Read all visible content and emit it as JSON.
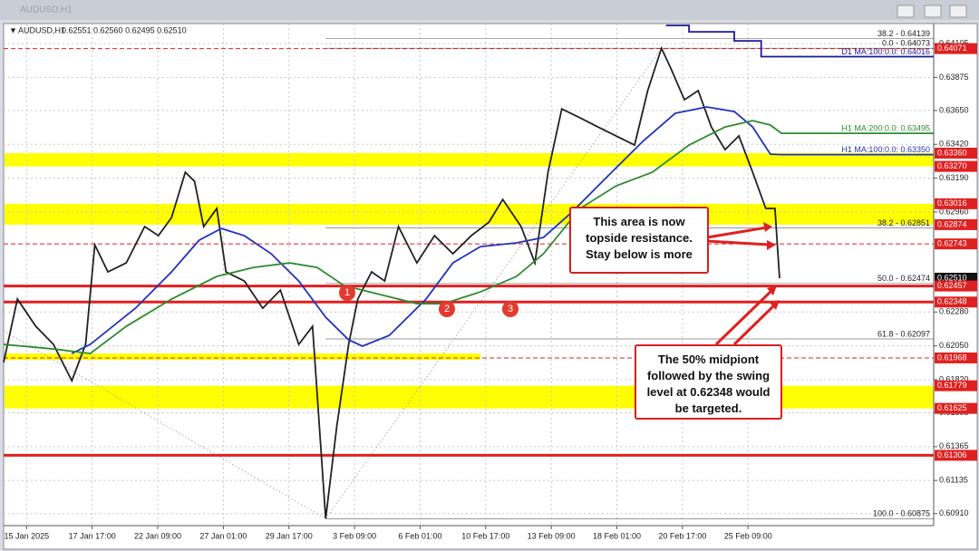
{
  "chart_data": {
    "type": "line",
    "title": "AUDUSD,H1",
    "subtitle": "0.62551 0.62560 0.62495 0.62510",
    "xlim": [
      -0.35,
      13.83
    ],
    "ylim": [
      0.60828,
      0.64241
    ],
    "grid": true,
    "xticks": [
      {
        "value": 0,
        "label": "15 Jan 2025"
      },
      {
        "value": 1,
        "label": "17 Jan 17:00"
      },
      {
        "value": 2,
        "label": "22 Jan 09:00"
      },
      {
        "value": 3,
        "label": "27 Jan 01:00"
      },
      {
        "value": 4,
        "label": "29 Jan 17:00"
      },
      {
        "value": 5,
        "label": "3 Feb 09:00"
      },
      {
        "value": 6,
        "label": "6 Feb 01:00"
      },
      {
        "value": 7,
        "label": "10 Feb 17:00"
      },
      {
        "value": 8,
        "label": "13 Feb 09:00"
      },
      {
        "value": 9,
        "label": "18 Feb 01:00"
      },
      {
        "value": 10,
        "label": "20 Feb 17:00"
      },
      {
        "value": 11,
        "label": "25 Feb 09:00"
      }
    ],
    "yticks": [
      0.64105,
      0.63875,
      {
        "value": 0.6365,
        "label": "0.63650"
      },
      {
        "value": 0.6342,
        "label": "0.63420"
      },
      {
        "value": 0.6319,
        "label": "0.63190"
      },
      {
        "value": 0.6296,
        "label": "0.62960"
      },
      {
        "value": 0.6228,
        "label": "0.62280"
      },
      {
        "value": 0.6205,
        "label": "0.62050"
      },
      {
        "value": 0.6182,
        "label": "0.61820"
      },
      0.61595,
      0.61365,
      0.61135,
      {
        "value": 0.6091,
        "label": "0.60910"
      }
    ],
    "series": [
      {
        "name": "AUDUSD,H1",
        "color": "#222222",
        "x": [
          -0.35,
          -0.14,
          0.14,
          0.41,
          0.69,
          0.9,
          1.04,
          1.24,
          1.52,
          1.8,
          2.01,
          2.21,
          2.42,
          2.56,
          2.7,
          2.9,
          3.04,
          3.32,
          3.6,
          3.87,
          4.15,
          4.36,
          4.56,
          4.73,
          4.91,
          5.05,
          5.26,
          5.46,
          5.67,
          5.95,
          6.22,
          6.5,
          6.78,
          7.05,
          7.26,
          7.54,
          7.75,
          7.95,
          8.16,
          8.44,
          8.71,
          8.99,
          9.27,
          9.47,
          9.68,
          9.82,
          10.03,
          10.24,
          10.44,
          10.65,
          10.86,
          11.07,
          11.27,
          11.41,
          11.48
        ],
        "values": [
          0.61937,
          0.62368,
          0.62183,
          0.6206,
          0.61813,
          0.6206,
          0.62737,
          0.62553,
          0.62614,
          0.62861,
          0.62799,
          0.62922,
          0.6323,
          0.63169,
          0.62861,
          0.62984,
          0.62553,
          0.62491,
          0.62306,
          0.62429,
          0.6206,
          0.62183,
          0.60875,
          0.61505,
          0.6206,
          0.62368,
          0.62553,
          0.62491,
          0.62861,
          0.62614,
          0.62799,
          0.62676,
          0.62799,
          0.62891,
          0.63045,
          0.62861,
          0.62614,
          0.6323,
          0.63661,
          0.636,
          0.63538,
          0.63477,
          0.63415,
          0.63785,
          0.64073,
          0.63939,
          0.63723,
          0.63785,
          0.63538,
          0.63384,
          0.63477,
          0.6323,
          0.62984,
          0.62984,
          0.6251
        ]
      },
      {
        "name": "H1 MA:100:0.0: 0.63350",
        "color": "#2233bb",
        "x": [
          0.69,
          0.97,
          1.66,
          2.21,
          2.63,
          2.97,
          3.32,
          3.73,
          4.15,
          4.56,
          4.91,
          5.12,
          5.53,
          6.09,
          6.5,
          6.92,
          7.47,
          7.88,
          8.3,
          8.85,
          9.41,
          9.89,
          10.37,
          10.79,
          11.07,
          11.34,
          11.51,
          13.83
        ],
        "values": [
          0.61998,
          0.6206,
          0.62306,
          0.62553,
          0.62768,
          0.62848,
          0.62799,
          0.62676,
          0.62491,
          0.62245,
          0.62091,
          0.62048,
          0.62121,
          0.62368,
          0.62614,
          0.62725,
          0.6275,
          0.62787,
          0.62953,
          0.63199,
          0.63446,
          0.63631,
          0.63674,
          0.63643,
          0.63538,
          0.63353,
          0.6335,
          0.6335
        ]
      },
      {
        "name": "H1 MA:200:0.0: 0.63495",
        "color": "#2e8b2e",
        "x": [
          -0.35,
          0.41,
          0.97,
          1.52,
          2.21,
          2.9,
          3.46,
          4.01,
          4.43,
          4.84,
          5.39,
          5.95,
          6.36,
          6.92,
          7.47,
          7.88,
          8.44,
          8.99,
          9.54,
          10.1,
          10.65,
          11.07,
          11.34,
          11.51,
          13.83
        ],
        "values": [
          0.6206,
          0.62029,
          0.61998,
          0.62183,
          0.62368,
          0.62522,
          0.62583,
          0.62614,
          0.62583,
          0.6246,
          0.62399,
          0.62337,
          0.62337,
          0.62417,
          0.62522,
          0.62676,
          0.62984,
          0.63138,
          0.6323,
          0.63415,
          0.63538,
          0.63581,
          0.63551,
          0.63495,
          0.63495
        ]
      },
      {
        "name": "D1 MA:100:0.0: 0.64016",
        "color": "#1a1a99",
        "x": [
          9.75,
          10.1,
          10.1,
          10.79,
          10.79,
          11.2,
          11.2,
          13.83
        ],
        "values": [
          0.64228,
          0.64228,
          0.64185,
          0.64185,
          0.64123,
          0.64123,
          0.64016,
          0.64016
        ]
      }
    ],
    "trendlines": [
      {
        "x": [
          -0.35,
          4.56
        ],
        "values": [
          0.62152,
          0.60875
        ]
      },
      {
        "x": [
          4.56,
          9.68
        ],
        "values": [
          0.60875,
          0.64073
        ]
      }
    ],
    "zones": [
      {
        "from": 0.6327,
        "to": 0.6336,
        "color": "#ffff00"
      },
      {
        "from": 0.62874,
        "to": 0.63016,
        "color": "#ffff00"
      },
      {
        "from": 0.61955,
        "to": 0.61998,
        "color": "#ffff00",
        "xmax": 6.92
      },
      {
        "from": 0.61625,
        "to": 0.61779,
        "color": "#ffff00"
      }
    ],
    "levels": [
      {
        "value": 0.64071,
        "label": "0.64071",
        "color": "#e02020",
        "line": "dashed"
      },
      {
        "value": 0.6336,
        "label": "0.63360",
        "color": "#e02020",
        "line": "none"
      },
      {
        "value": 0.6327,
        "label": "0.63270",
        "color": "#e02020",
        "line": "none"
      },
      {
        "value": 0.63016,
        "label": "0.63016",
        "color": "#e02020",
        "line": "none"
      },
      {
        "value": 0.62874,
        "label": "0.62874",
        "color": "#e02020",
        "line": "none"
      },
      {
        "value": 0.62743,
        "label": "0.62743",
        "color": "#e02020",
        "line": "dashed"
      },
      {
        "value": 0.6251,
        "label": "0.62510",
        "color": "#111111",
        "line": "none"
      },
      {
        "value": 0.62457,
        "label": "0.62457",
        "color": "#e02020",
        "line": "solid"
      },
      {
        "value": 0.62348,
        "label": "0.62348",
        "color": "#e02020",
        "line": "solid"
      },
      {
        "value": 0.61968,
        "label": "0.61968",
        "color": "#e02020",
        "line": "dashed"
      },
      {
        "value": 0.61779,
        "label": "0.61779",
        "color": "#e02020",
        "line": "none"
      },
      {
        "value": 0.61625,
        "label": "0.61625",
        "color": "#e02020",
        "line": "none"
      },
      {
        "value": 0.61306,
        "label": "0.61306",
        "color": "#e02020",
        "line": "solid"
      }
    ],
    "fib_levels": [
      {
        "value": 0.64139,
        "text": "38.2 - 0.64139"
      },
      {
        "value": 0.64073,
        "text": "0.0 - 0.64073"
      },
      {
        "value": 0.62851,
        "text": "38.2 - 0.62851"
      },
      {
        "value": 0.62474,
        "text": "50.0 - 0.62474"
      },
      {
        "value": 0.62097,
        "text": "61.8 - 0.62097"
      },
      {
        "value": 0.60875,
        "text": "100.0 - 0.60875"
      }
    ],
    "markers": [
      "1",
      "2",
      "3"
    ],
    "annotations": [
      "This area is now topside resistance. Stay below is more",
      "The 50% midpiont followed by the swing level at 0.62348 would be targeted."
    ]
  }
}
